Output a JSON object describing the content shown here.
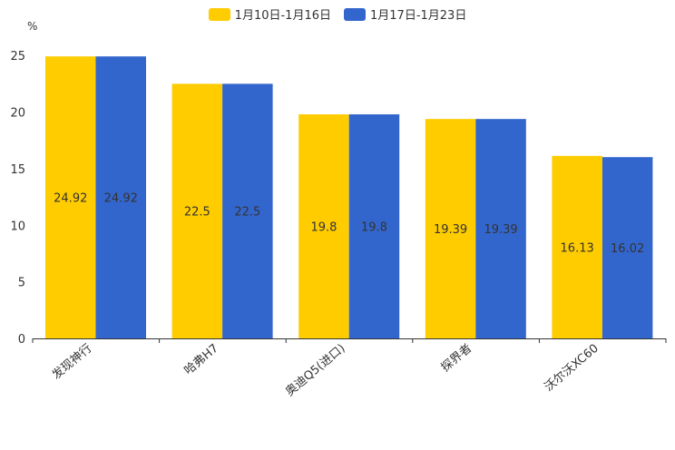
{
  "chart_data": {
    "type": "bar",
    "title": "",
    "ylabel": "%",
    "xlabel": "",
    "categories": [
      "发现神行",
      "哈弗H7",
      "奥迪Q5(进口)",
      "探界者",
      "沃尔沃XC60"
    ],
    "series": [
      {
        "name": "1月10日-1月16日",
        "color": "#FFCC00",
        "values": [
          24.92,
          22.5,
          19.8,
          19.39,
          16.13
        ]
      },
      {
        "name": "1月17日-1月23日",
        "color": "#3366CC",
        "values": [
          24.92,
          22.5,
          19.8,
          19.39,
          16.02
        ]
      }
    ],
    "yticks": [
      0,
      5,
      10,
      15,
      20,
      25
    ],
    "ylim": [
      0,
      27.5
    ],
    "legend_position": "top-center",
    "grid": false
  }
}
